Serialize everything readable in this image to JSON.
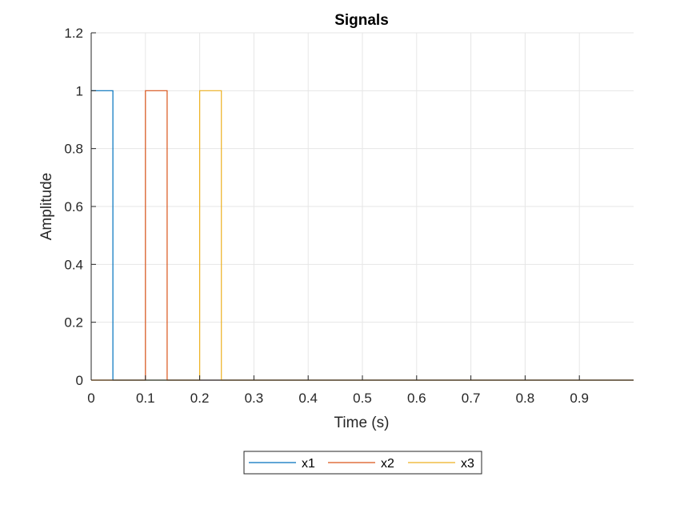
{
  "chart_data": {
    "type": "line",
    "title": "Signals",
    "xlabel": "Time (s)",
    "ylabel": "Amplitude",
    "xlim": [
      0,
      1
    ],
    "ylim": [
      0,
      1.2
    ],
    "x_ticks": [
      0,
      0.1,
      0.2,
      0.3,
      0.4,
      0.5,
      0.6,
      0.7,
      0.8,
      0.9
    ],
    "x_tick_labels": [
      "0",
      "0.1",
      "0.2",
      "0.3",
      "0.4",
      "0.5",
      "0.6",
      "0.7",
      "0.8",
      "0.9"
    ],
    "y_ticks": [
      0,
      0.2,
      0.4,
      0.6,
      0.8,
      1,
      1.2
    ],
    "y_tick_labels": [
      "0",
      "0.2",
      "0.4",
      "0.6",
      "0.8",
      "1",
      "1.2"
    ],
    "grid": true,
    "legend_position": "bottom-outside",
    "series": [
      {
        "name": "x1",
        "color": "#0072BD",
        "x": [
          0,
          0.04,
          0.04,
          1
        ],
        "y": [
          1,
          1,
          0,
          0
        ]
      },
      {
        "name": "x2",
        "color": "#D95319",
        "x": [
          0,
          0.1,
          0.1,
          0.14,
          0.14,
          1
        ],
        "y": [
          0,
          0,
          1,
          1,
          0,
          0
        ]
      },
      {
        "name": "x3",
        "color": "#EDB120",
        "x": [
          0,
          0.2,
          0.2,
          0.24,
          0.24,
          1
        ],
        "y": [
          0,
          0,
          1,
          1,
          0,
          0
        ]
      }
    ]
  }
}
